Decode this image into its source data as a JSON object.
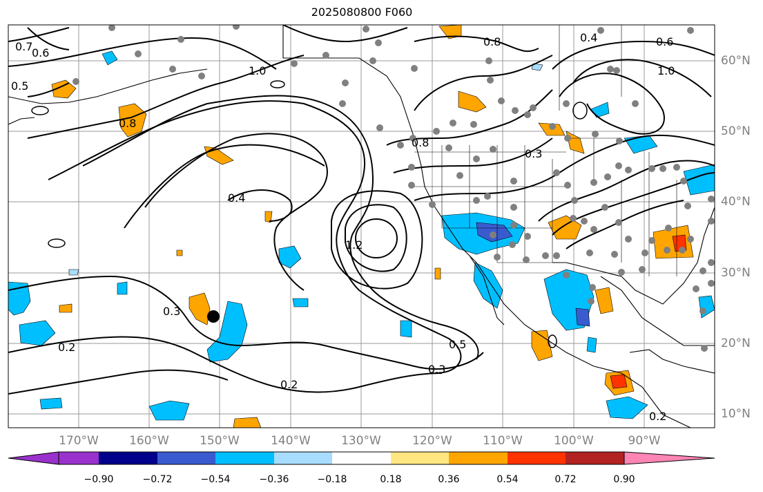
{
  "title": "2025080800 F060",
  "map": {
    "lat_ticks": [
      "60°N",
      "50°N",
      "40°N",
      "30°N",
      "20°N",
      "10°N"
    ],
    "lon_ticks": [
      "170°W",
      "160°W",
      "150°W",
      "140°W",
      "130°W",
      "120°W",
      "110°W",
      "100°W",
      "90°W"
    ],
    "contour_labels": [
      "0.7",
      "0.6",
      "0.5",
      "0.8",
      "1.0",
      "0.4",
      "0.2",
      "0.3",
      "1.2",
      "0.5",
      "0.3",
      "0.2",
      "0.8",
      "0.6",
      "0.4",
      "1.0",
      "0.2",
      "0.8",
      "0.3"
    ],
    "marker": "storm-center"
  },
  "colorbar": {
    "labels": [
      "−0.90",
      "−0.72",
      "−0.54",
      "−0.36",
      "−0.18",
      "0.18",
      "0.36",
      "0.54",
      "0.72",
      "0.90"
    ],
    "colors": [
      "#9932cc",
      "#00008b",
      "#3a5bd0",
      "#00bfff",
      "#a8ddff",
      "#ffffff",
      "#ffe680",
      "#ffa500",
      "#ff3300",
      "#b22222",
      "#ff85b5"
    ]
  }
}
